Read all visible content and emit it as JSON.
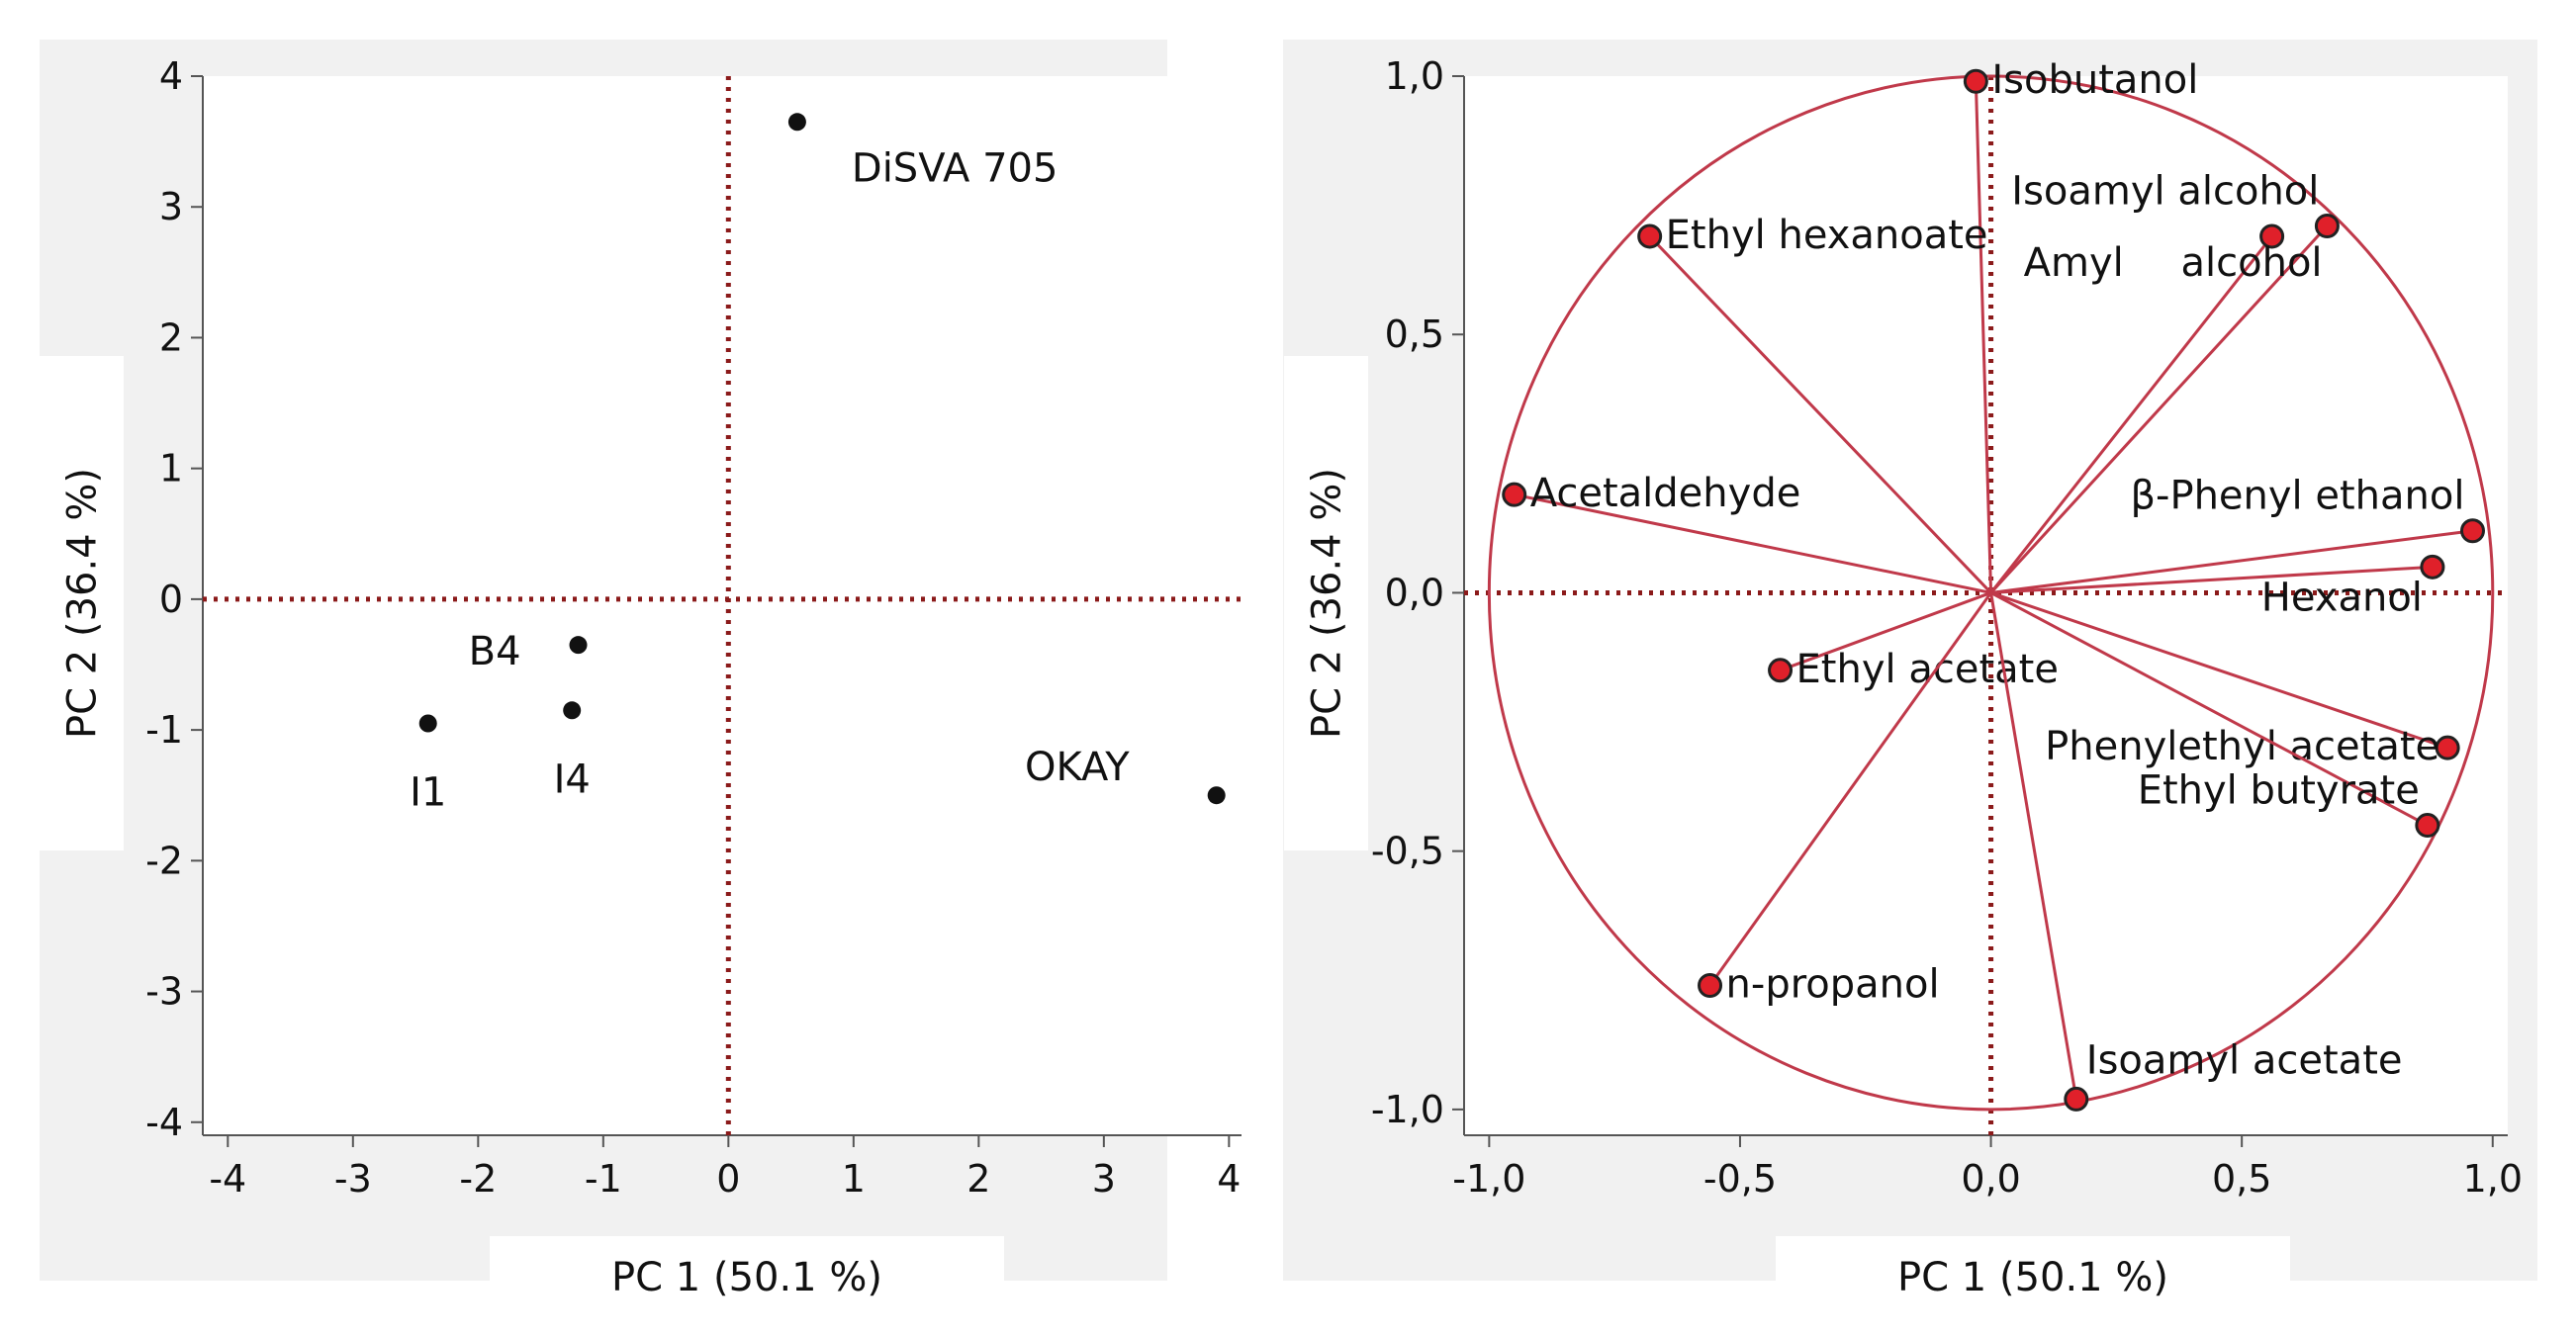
{
  "colors": {
    "panel_bg": "#f1f1f1",
    "plot_bg": "#ffffff",
    "axis": "#555555",
    "zero_line": "#8b1a1a",
    "point": "#111111",
    "loading": "#c0394a",
    "loading_fill": "#e0202a"
  },
  "chart_data": [
    {
      "type": "scatter",
      "name": "score-plot",
      "xlabel": "PC 1 (50.1 %)",
      "ylabel": "PC 2 (36.4 %)",
      "xlim": [
        -4.2,
        4.1
      ],
      "ylim": [
        -4.1,
        4.0
      ],
      "xticks": [
        -4,
        -3,
        -2,
        -1,
        0,
        1,
        2,
        3,
        4
      ],
      "xtick_labels": [
        "-4",
        "-3",
        "-2",
        "-1",
        "0",
        "1",
        "2",
        "3",
        "4"
      ],
      "yticks": [
        4,
        3,
        2,
        1,
        0,
        -1,
        -2,
        -3,
        -4
      ],
      "ytick_labels": [
        "4",
        "3",
        "2",
        "1",
        "0",
        "-1",
        "-2",
        "-3",
        "-4"
      ],
      "reference_lines": {
        "x": 0,
        "y": 0,
        "style": "dotted"
      },
      "points": [
        {
          "label": "DiSVA 705",
          "x": 0.55,
          "y": 3.65,
          "label_offset": "below-right"
        },
        {
          "label": "B4",
          "x": -1.2,
          "y": -0.35,
          "label_offset": "left"
        },
        {
          "label": "I4",
          "x": -1.25,
          "y": -0.85,
          "label_offset": "below"
        },
        {
          "label": "I1",
          "x": -2.4,
          "y": -0.95,
          "label_offset": "below"
        },
        {
          "label": "OKAY",
          "x": 3.9,
          "y": -1.5,
          "label_offset": "upper-left"
        }
      ]
    },
    {
      "type": "scatter",
      "name": "loading-plot",
      "xlabel": "PC 1 (50.1 %)",
      "ylabel": "PC 2 (36.4 %)",
      "xlim": [
        -1.05,
        1.03
      ],
      "ylim": [
        -1.05,
        1.0
      ],
      "xticks": [
        -1.0,
        -0.5,
        0.0,
        0.5,
        1.0
      ],
      "xtick_labels": [
        "-1,0",
        "-0,5",
        "0,0",
        "0,5",
        "1,0"
      ],
      "yticks": [
        1.0,
        0.5,
        0.0,
        -0.5,
        -1.0
      ],
      "ytick_labels": [
        "1,0",
        "0,5",
        "0,0",
        "-0,5",
        "-1,0"
      ],
      "reference_lines": {
        "x": 0,
        "y": 0,
        "style": "dotted"
      },
      "unit_circle": true,
      "vectors": [
        {
          "label": "Isobutanol",
          "x": -0.03,
          "y": 0.99,
          "label_offset": "right"
        },
        {
          "label": "Isoamyl alcohol",
          "x": 0.67,
          "y": 0.71,
          "label_offset": "upper-left"
        },
        {
          "label": "Amyl alcohol",
          "x": 0.56,
          "y": 0.69,
          "label_offset": "split-below"
        },
        {
          "label": "Ethyl hexanoate",
          "x": -0.68,
          "y": 0.69,
          "label_offset": "right"
        },
        {
          "label": "Acetaldehyde",
          "x": -0.95,
          "y": 0.19,
          "label_offset": "right"
        },
        {
          "label": "β-Phenyl ethanol",
          "x": 0.96,
          "y": 0.12,
          "label_offset": "upper-left"
        },
        {
          "label": "Hexanol",
          "x": 0.88,
          "y": 0.05,
          "label_offset": "lower-left"
        },
        {
          "label": "Ethyl acetate",
          "x": -0.42,
          "y": -0.15,
          "label_offset": "right"
        },
        {
          "label": "Phenylethyl acetate",
          "x": 0.91,
          "y": -0.3,
          "label_offset": "left"
        },
        {
          "label": "Ethyl butyrate",
          "x": 0.87,
          "y": -0.45,
          "label_offset": "upper-left"
        },
        {
          "label": "n-propanol",
          "x": -0.56,
          "y": -0.76,
          "label_offset": "right"
        },
        {
          "label": "Isoamyl acetate",
          "x": 0.17,
          "y": -0.98,
          "label_offset": "upper-right"
        }
      ]
    }
  ]
}
